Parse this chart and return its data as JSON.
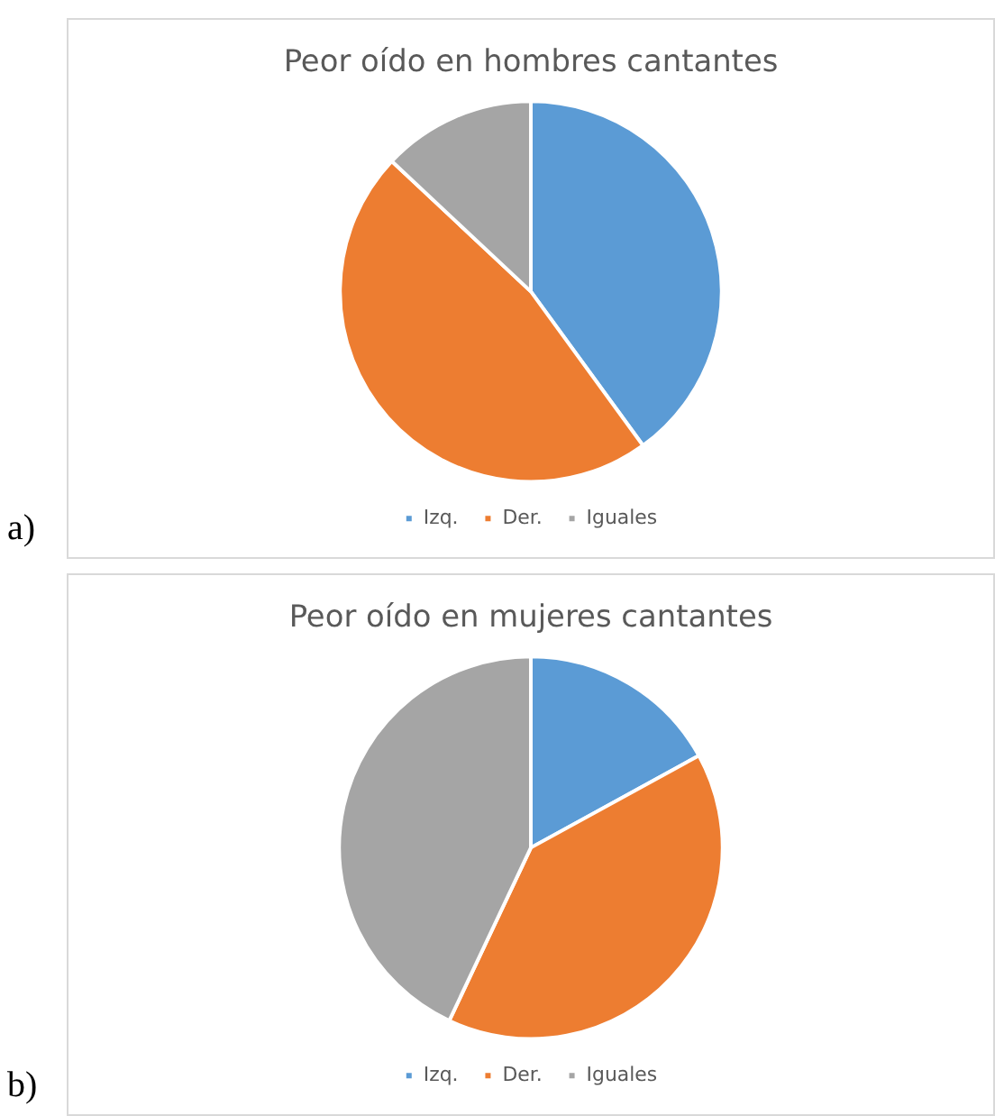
{
  "chart_data": [
    {
      "type": "pie",
      "title": "Peor oído en hombres cantantes",
      "categories": [
        "Izq.",
        "Der.",
        "Iguales"
      ],
      "values": [
        40,
        47,
        13
      ],
      "colors": [
        "#5b9bd5",
        "#ed7d31",
        "#a5a5a5"
      ],
      "legend": "bottom",
      "annotations": [
        "a)"
      ]
    },
    {
      "type": "pie",
      "title": "Peor oído en mujeres cantantes",
      "categories": [
        "Izq.",
        "Der.",
        "Iguales"
      ],
      "values": [
        17,
        40,
        43
      ],
      "colors": [
        "#5b9bd5",
        "#ed7d31",
        "#a5a5a5"
      ],
      "legend": "bottom",
      "annotations": [
        "b)"
      ]
    }
  ]
}
